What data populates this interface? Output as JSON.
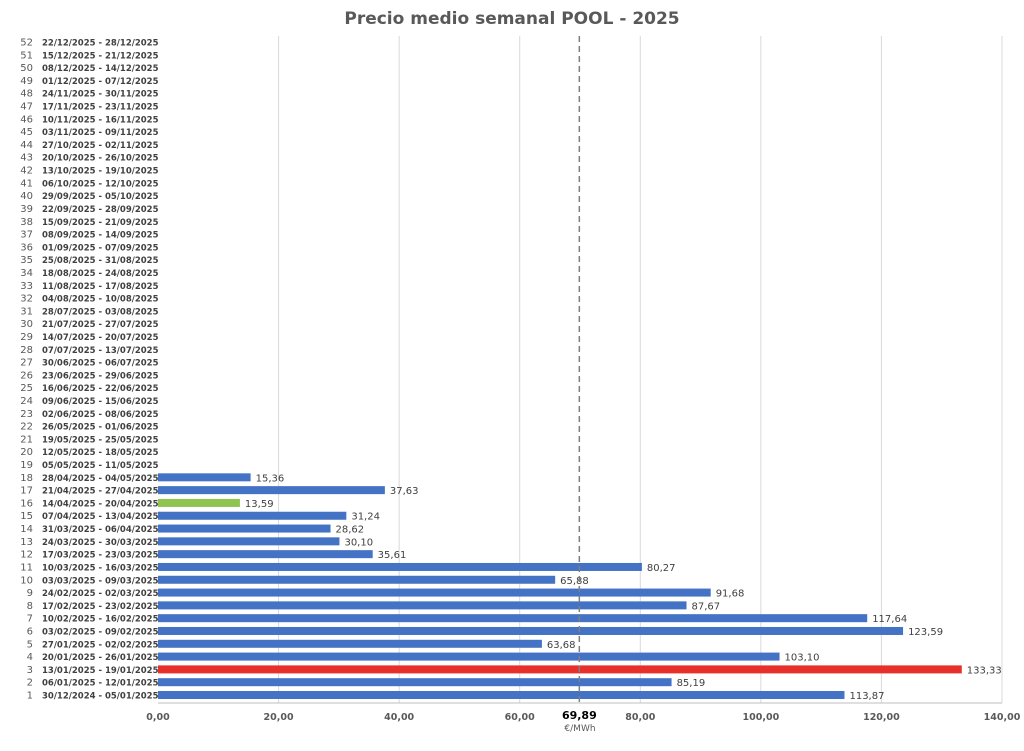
{
  "chart_data": {
    "type": "bar",
    "orientation": "horizontal",
    "title": "Precio medio semanal POOL - 2025",
    "xlabel": "€/MWh",
    "xlim": [
      0,
      140
    ],
    "x_ticks": [
      "0,00",
      "20,00",
      "40,00",
      "60,00",
      "80,00",
      "100,00",
      "120,00",
      "140,00"
    ],
    "grid": true,
    "average": {
      "value": 69.89,
      "label": "69,89"
    },
    "colors": {
      "default": "#4472c4",
      "max": "#e8302a",
      "min": "#8fc450"
    },
    "weeks": [
      {
        "n": "1",
        "range": "30/12/2024 - 05/01/2025",
        "value": 113.87,
        "label": "113,87",
        "color": "#4472c4"
      },
      {
        "n": "2",
        "range": "06/01/2025 - 12/01/2025",
        "value": 85.19,
        "label": "85,19",
        "color": "#4472c4"
      },
      {
        "n": "3",
        "range": "13/01/2025 - 19/01/2025",
        "value": 133.33,
        "label": "133,33",
        "color": "#e8302a"
      },
      {
        "n": "4",
        "range": "20/01/2025 - 26/01/2025",
        "value": 103.1,
        "label": "103,10",
        "color": "#4472c4"
      },
      {
        "n": "5",
        "range": "27/01/2025 - 02/02/2025",
        "value": 63.68,
        "label": "63,68",
        "color": "#4472c4"
      },
      {
        "n": "6",
        "range": "03/02/2025 - 09/02/2025",
        "value": 123.59,
        "label": "123,59",
        "color": "#4472c4"
      },
      {
        "n": "7",
        "range": "10/02/2025 - 16/02/2025",
        "value": 117.64,
        "label": "117,64",
        "color": "#4472c4"
      },
      {
        "n": "8",
        "range": "17/02/2025 - 23/02/2025",
        "value": 87.67,
        "label": "87,67",
        "color": "#4472c4"
      },
      {
        "n": "9",
        "range": "24/02/2025 - 02/03/2025",
        "value": 91.68,
        "label": "91,68",
        "color": "#4472c4"
      },
      {
        "n": "10",
        "range": "03/03/2025 - 09/03/2025",
        "value": 65.88,
        "label": "65,88",
        "color": "#4472c4"
      },
      {
        "n": "11",
        "range": "10/03/2025 - 16/03/2025",
        "value": 80.27,
        "label": "80,27",
        "color": "#4472c4"
      },
      {
        "n": "12",
        "range": "17/03/2025 - 23/03/2025",
        "value": 35.61,
        "label": "35,61",
        "color": "#4472c4"
      },
      {
        "n": "13",
        "range": "24/03/2025 - 30/03/2025",
        "value": 30.1,
        "label": "30,10",
        "color": "#4472c4"
      },
      {
        "n": "14",
        "range": "31/03/2025 - 06/04/2025",
        "value": 28.62,
        "label": "28,62",
        "color": "#4472c4"
      },
      {
        "n": "15",
        "range": "07/04/2025 - 13/04/2025",
        "value": 31.24,
        "label": "31,24",
        "color": "#4472c4"
      },
      {
        "n": "16",
        "range": "14/04/2025 - 20/04/2025",
        "value": 13.59,
        "label": "13,59",
        "color": "#8fc450"
      },
      {
        "n": "17",
        "range": "21/04/2025 - 27/04/2025",
        "value": 37.63,
        "label": "37,63",
        "color": "#4472c4"
      },
      {
        "n": "18",
        "range": "28/04/2025 - 04/05/2025",
        "value": 15.36,
        "label": "15,36",
        "color": "#4472c4"
      },
      {
        "n": "19",
        "range": "05/05/2025 - 11/05/2025"
      },
      {
        "n": "20",
        "range": "12/05/2025 - 18/05/2025"
      },
      {
        "n": "21",
        "range": "19/05/2025 - 25/05/2025"
      },
      {
        "n": "22",
        "range": "26/05/2025 - 01/06/2025"
      },
      {
        "n": "23",
        "range": "02/06/2025 - 08/06/2025"
      },
      {
        "n": "24",
        "range": "09/06/2025 - 15/06/2025"
      },
      {
        "n": "25",
        "range": "16/06/2025 - 22/06/2025"
      },
      {
        "n": "26",
        "range": "23/06/2025 - 29/06/2025"
      },
      {
        "n": "27",
        "range": "30/06/2025 - 06/07/2025"
      },
      {
        "n": "28",
        "range": "07/07/2025 - 13/07/2025"
      },
      {
        "n": "29",
        "range": "14/07/2025 - 20/07/2025"
      },
      {
        "n": "30",
        "range": "21/07/2025 - 27/07/2025"
      },
      {
        "n": "31",
        "range": "28/07/2025 - 03/08/2025"
      },
      {
        "n": "32",
        "range": "04/08/2025 - 10/08/2025"
      },
      {
        "n": "33",
        "range": "11/08/2025 - 17/08/2025"
      },
      {
        "n": "34",
        "range": "18/08/2025 - 24/08/2025"
      },
      {
        "n": "35",
        "range": "25/08/2025 - 31/08/2025"
      },
      {
        "n": "36",
        "range": "01/09/2025 - 07/09/2025"
      },
      {
        "n": "37",
        "range": "08/09/2025 - 14/09/2025"
      },
      {
        "n": "38",
        "range": "15/09/2025 - 21/09/2025"
      },
      {
        "n": "39",
        "range": "22/09/2025 - 28/09/2025"
      },
      {
        "n": "40",
        "range": "29/09/2025 - 05/10/2025"
      },
      {
        "n": "41",
        "range": "06/10/2025 - 12/10/2025"
      },
      {
        "n": "42",
        "range": "13/10/2025 - 19/10/2025"
      },
      {
        "n": "43",
        "range": "20/10/2025 - 26/10/2025"
      },
      {
        "n": "44",
        "range": "27/10/2025 - 02/11/2025"
      },
      {
        "n": "45",
        "range": "03/11/2025 - 09/11/2025"
      },
      {
        "n": "46",
        "range": "10/11/2025 - 16/11/2025"
      },
      {
        "n": "47",
        "range": "17/11/2025 - 23/11/2025"
      },
      {
        "n": "48",
        "range": "24/11/2025 - 30/11/2025"
      },
      {
        "n": "49",
        "range": "01/12/2025 - 07/12/2025"
      },
      {
        "n": "50",
        "range": "08/12/2025 - 14/12/2025"
      },
      {
        "n": "51",
        "range": "15/12/2025 - 21/12/2025"
      },
      {
        "n": "52",
        "range": "22/12/2025 - 28/12/2025"
      }
    ]
  }
}
